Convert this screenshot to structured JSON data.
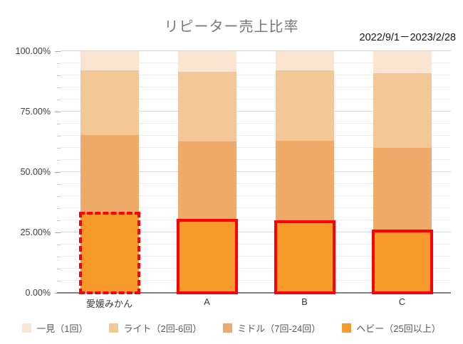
{
  "chart_data": {
    "type": "bar",
    "stacked": true,
    "title": "リピーター売上比率",
    "subtitle": "2022/9/1－2023/2/28",
    "categories": [
      "愛媛みかん",
      "A",
      "B",
      "C"
    ],
    "series": [
      {
        "name": "一見（1回）",
        "color": "#fae5d3",
        "values": [
          8,
          8.5,
          8,
          9
        ]
      },
      {
        "name": "ライト（2回-6回）",
        "color": "#f4c796",
        "values": [
          26.7,
          29,
          29,
          31
        ]
      },
      {
        "name": "ミドル（7回-24回）",
        "color": "#efa968",
        "values": [
          32.3,
          32.5,
          33.5,
          34.5
        ]
      },
      {
        "name": "ヘビー（25回以上）",
        "color": "#f8992c",
        "values": [
          33,
          30,
          29.5,
          25.5
        ]
      }
    ],
    "highlight": {
      "target_series": "ヘビー（25回以上）",
      "color": "#ff0000",
      "border_styles": [
        "dashed",
        "solid",
        "solid",
        "solid"
      ]
    },
    "y_axis": {
      "min": 0,
      "max": 100,
      "major_step": 25,
      "minor_step": 5,
      "major_tick_labels": [
        "100.00%",
        "75.00%",
        "50.00%",
        "25.00%",
        "0.00%"
      ],
      "grid": true
    },
    "legend_position": "bottom"
  },
  "colors": {
    "title_text": "#7b7575",
    "axis_text": "#3f3f3f",
    "legend_text": "#595959",
    "axis_line": "#7f7f7f",
    "gridline_minor": "#ededed",
    "gridline_major": "#d8d8d8",
    "highlight_red": "#ff0000"
  }
}
